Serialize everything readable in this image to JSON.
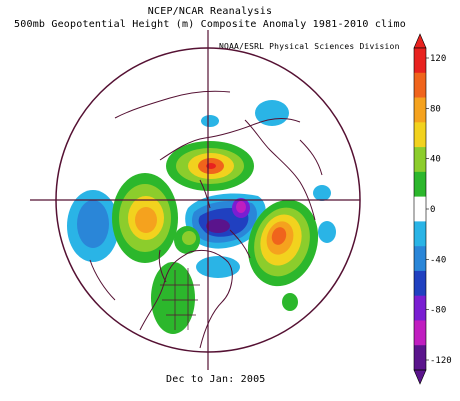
{
  "header": {
    "title": "NCEP/NCAR Reanalysis",
    "subtitle": "500mb Geopotential Height (m) Composite Anomaly 1981-2010 climo",
    "credit": "NOAA/ESRL Physical Sciences Division"
  },
  "footer": {
    "period": "Dec to Jan: 2005"
  },
  "map": {
    "projection": "north-polar-stereographic",
    "variable": "500mb geopotential height anomaly",
    "units": "m",
    "anomaly_centers": [
      {
        "sign": "negative",
        "region": "western North Pacific",
        "level": "-40 to -80"
      },
      {
        "sign": "positive",
        "region": "Aleutians / Bering Sea",
        "level": "+40 to +80"
      },
      {
        "sign": "positive",
        "region": "Arctic Ocean north of Eurasia",
        "level": "+80 to +100"
      },
      {
        "sign": "negative",
        "region": "Barents Sea / Scandinavia",
        "level": "-80 to -120"
      },
      {
        "sign": "negative",
        "region": "Siberia",
        "level": "-40 to -60"
      },
      {
        "sign": "positive",
        "region": "Central Asia / Middle East",
        "level": "+80 to +100"
      },
      {
        "sign": "negative",
        "region": "western Canada",
        "level": "-40"
      },
      {
        "sign": "positive",
        "region": "northwest Atlantic / Newfoundland",
        "level": "+40"
      },
      {
        "sign": "negative",
        "region": "Europe",
        "level": "-20 to -40"
      }
    ]
  },
  "colorbar": {
    "ticks": [
      "120",
      "80",
      "40",
      "0",
      "-40",
      "-80",
      "-120"
    ],
    "colors": [
      "#e8221f",
      "#f0641c",
      "#f5a21e",
      "#f2d21e",
      "#8ccd2c",
      "#2cb72c",
      "#ffffff",
      "#2ab4e6",
      "#2a86d8",
      "#2040c0",
      "#7a1ed2",
      "#c01ec0",
      "#5a148c"
    ]
  }
}
